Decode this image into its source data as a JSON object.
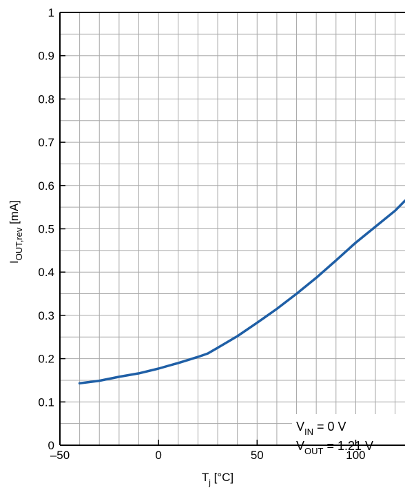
{
  "chart_data": {
    "type": "line",
    "xlabel": {
      "main": "T",
      "sub": "j",
      "unit": " [°C]"
    },
    "ylabel": {
      "main": "I",
      "sub": "OUT,rev",
      "unit": " [mA]"
    },
    "xlim": [
      -50,
      125
    ],
    "ylim": [
      0,
      1
    ],
    "x_ticks": [
      -50,
      0,
      50,
      100
    ],
    "x_tick_labels": [
      "–50",
      "0",
      "50",
      "100"
    ],
    "y_ticks": [
      0,
      0.1,
      0.2,
      0.3,
      0.4,
      0.5,
      0.6,
      0.7,
      0.8,
      0.9,
      1
    ],
    "y_tick_labels": [
      "0",
      "0.1",
      "0.2",
      "0.3",
      "0.4",
      "0.5",
      "0.6",
      "0.7",
      "0.8",
      "0.9",
      "1"
    ],
    "grid": true,
    "series": [
      {
        "color": "#1f5fa6",
        "x": [
          -40,
          -30,
          -20,
          -10,
          0,
          10,
          20,
          25,
          30,
          40,
          50,
          60,
          70,
          80,
          90,
          100,
          110,
          120,
          125
        ],
        "y": [
          0.143,
          0.149,
          0.158,
          0.166,
          0.177,
          0.19,
          0.204,
          0.212,
          0.225,
          0.252,
          0.283,
          0.315,
          0.35,
          0.387,
          0.427,
          0.468,
          0.505,
          0.542,
          0.565
        ]
      }
    ],
    "annotations": [
      {
        "main": "V",
        "sub": "IN",
        "rest": " = 0 V"
      },
      {
        "main": "V",
        "sub": "OUT",
        "rest": " = 1.21 V"
      }
    ]
  }
}
